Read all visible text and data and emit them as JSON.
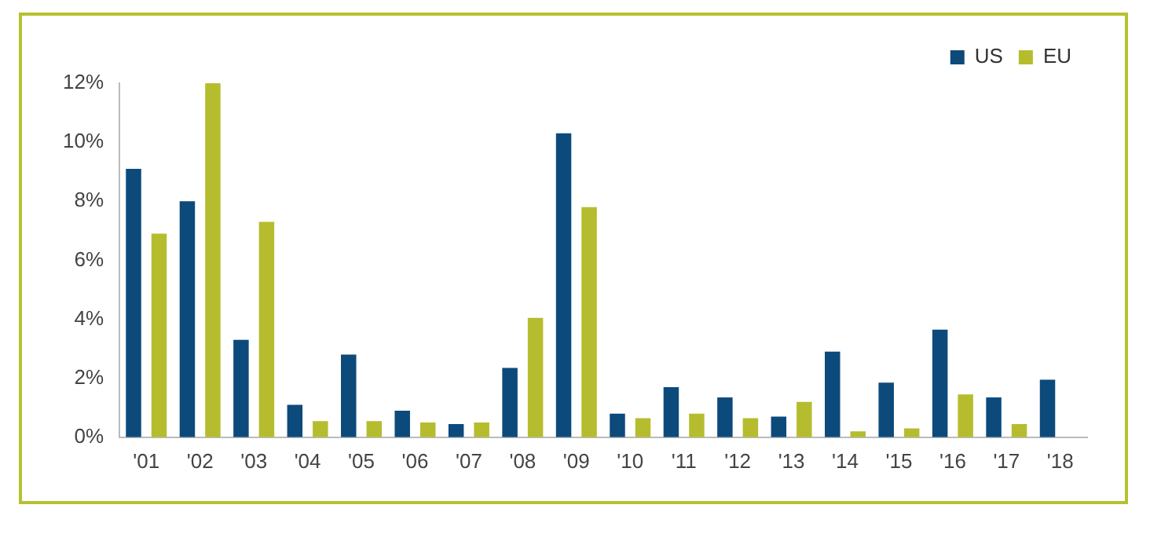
{
  "chart_data": {
    "type": "bar",
    "categories": [
      "'01",
      "'02",
      "'03",
      "'04",
      "'05",
      "'06",
      "'07",
      "'08",
      "'09",
      "'10",
      "'11",
      "'12",
      "'13",
      "'14",
      "'15",
      "'16",
      "'17",
      "'18"
    ],
    "series": [
      {
        "name": "US",
        "color": "#0d4a7c",
        "values": [
          9.1,
          8.0,
          3.3,
          1.1,
          2.8,
          0.9,
          0.45,
          2.35,
          10.3,
          0.8,
          1.7,
          1.35,
          0.7,
          2.9,
          1.85,
          3.65,
          1.35,
          1.95
        ]
      },
      {
        "name": "EU",
        "color": "#b5bd2e",
        "values": [
          6.9,
          12.0,
          7.3,
          0.55,
          0.55,
          0.5,
          0.5,
          4.05,
          7.8,
          0.65,
          0.8,
          0.65,
          1.2,
          0.2,
          0.3,
          1.45,
          0.45,
          null
        ]
      }
    ],
    "ylim": [
      0,
      12
    ],
    "yticks": [
      {
        "value": 0,
        "label": "0%"
      },
      {
        "value": 2,
        "label": "2%"
      },
      {
        "value": 4,
        "label": "4%"
      },
      {
        "value": 6,
        "label": "6%"
      },
      {
        "value": 8,
        "label": "8%"
      },
      {
        "value": 10,
        "label": "10%"
      },
      {
        "value": 12,
        "label": "12%"
      }
    ],
    "grid": false,
    "legend": "top right"
  }
}
